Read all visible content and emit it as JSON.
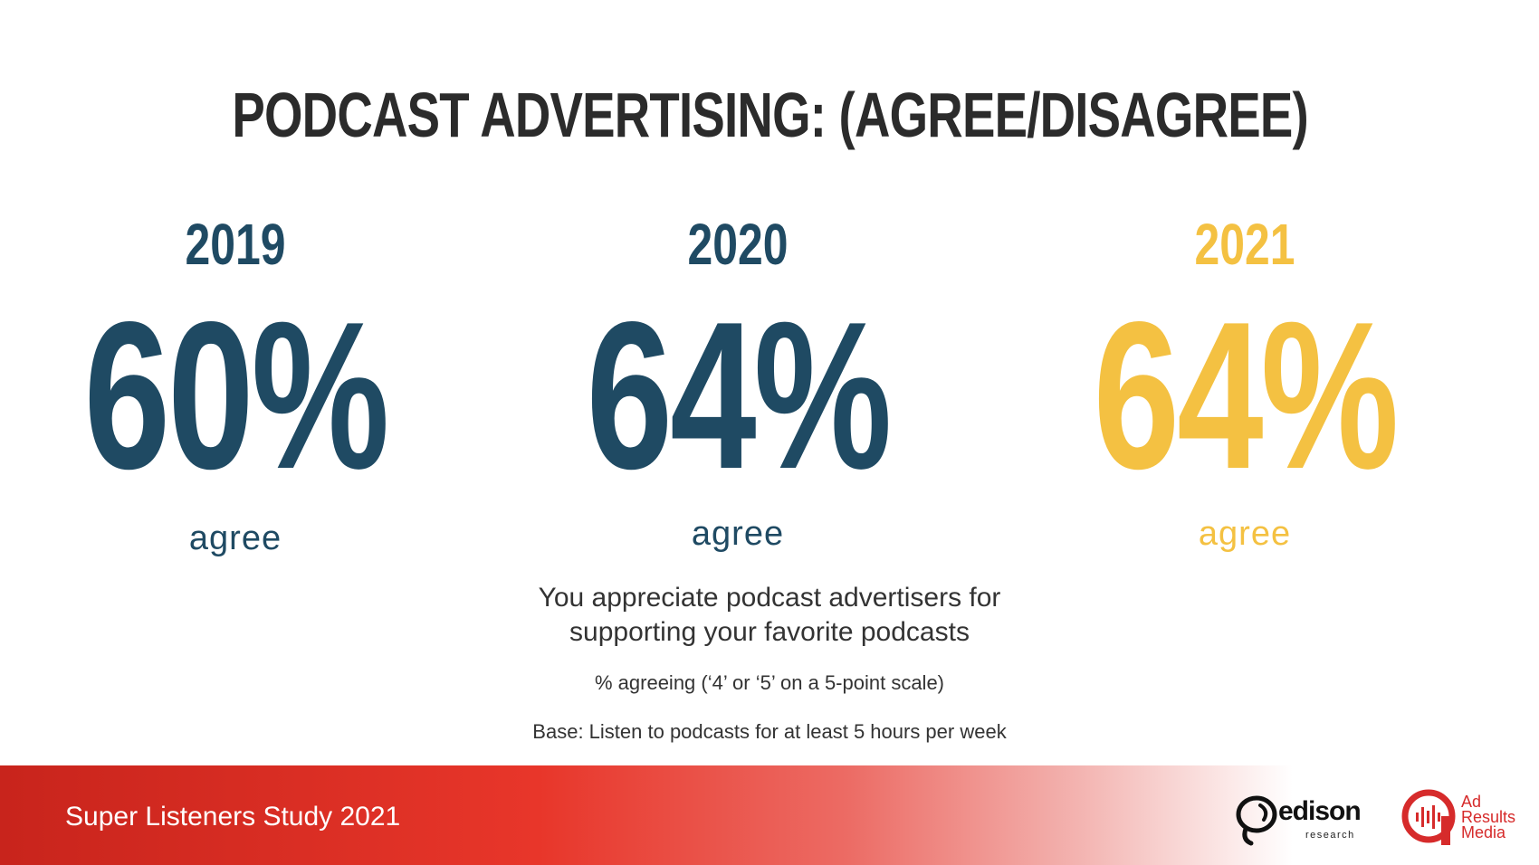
{
  "title": "PODCAST ADVERTISING: (AGREE/DISAGREE)",
  "chart_data": {
    "type": "table",
    "title": "PODCAST ADVERTISING: (AGREE/DISAGREE)",
    "categories": [
      "2019",
      "2020",
      "2021"
    ],
    "values": [
      60,
      64,
      64
    ],
    "value_labels": [
      "60%",
      "64%",
      "64%"
    ],
    "unit_label": "agree",
    "colors": [
      "#1f4a63",
      "#1f4a63",
      "#f4c142"
    ]
  },
  "question": {
    "line1": "You appreciate podcast advertisers for",
    "line2": "supporting your favorite podcasts"
  },
  "notes": {
    "scale": "% agreeing (‘4’ or ‘5’ on a 5-point scale)",
    "base": "Base: Listen to podcasts for at least 5 hours per week"
  },
  "footer": {
    "study": "Super Listeners Study 2021",
    "logo1_word": "edison",
    "logo1_sub": "research",
    "logo2_line1": "Ad",
    "logo2_line2": "Results",
    "logo2_line3": "Media"
  },
  "colors": {
    "navy": "#1f4a63",
    "gold": "#f4c142",
    "red": "#e8362a"
  }
}
